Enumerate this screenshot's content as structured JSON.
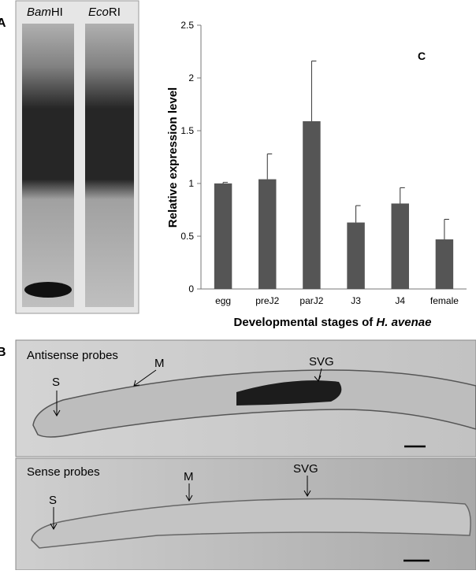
{
  "panel_labels": {
    "a": "A",
    "b": "B"
  },
  "blot": {
    "lane1": {
      "italic": "Bam",
      "plain": "HI"
    },
    "lane2": {
      "italic": "Eco",
      "plain": "RI"
    }
  },
  "chart_data": {
    "type": "bar",
    "panel_label": "C",
    "ylabel": "Relative expression level",
    "xlabel": "Developmental stages of ",
    "xlabel_species": "H. avenae",
    "categories": [
      "egg",
      "preJ2",
      "parJ2",
      "J3",
      "J4",
      "female"
    ],
    "values": [
      1.0,
      1.04,
      1.59,
      0.63,
      0.81,
      0.47
    ],
    "errors": [
      0.01,
      0.24,
      0.57,
      0.16,
      0.15,
      0.19
    ],
    "color": "#555555",
    "ylim": [
      0,
      2.5
    ],
    "yticks": [
      0,
      0.5,
      1,
      1.5,
      2,
      2.5
    ],
    "grid": false
  },
  "micrographs": [
    {
      "title": "Antisense probes",
      "labels": [
        "S",
        "M",
        "SVG"
      ]
    },
    {
      "title": "Sense probes",
      "labels": [
        "S",
        "M",
        "SVG"
      ]
    }
  ]
}
